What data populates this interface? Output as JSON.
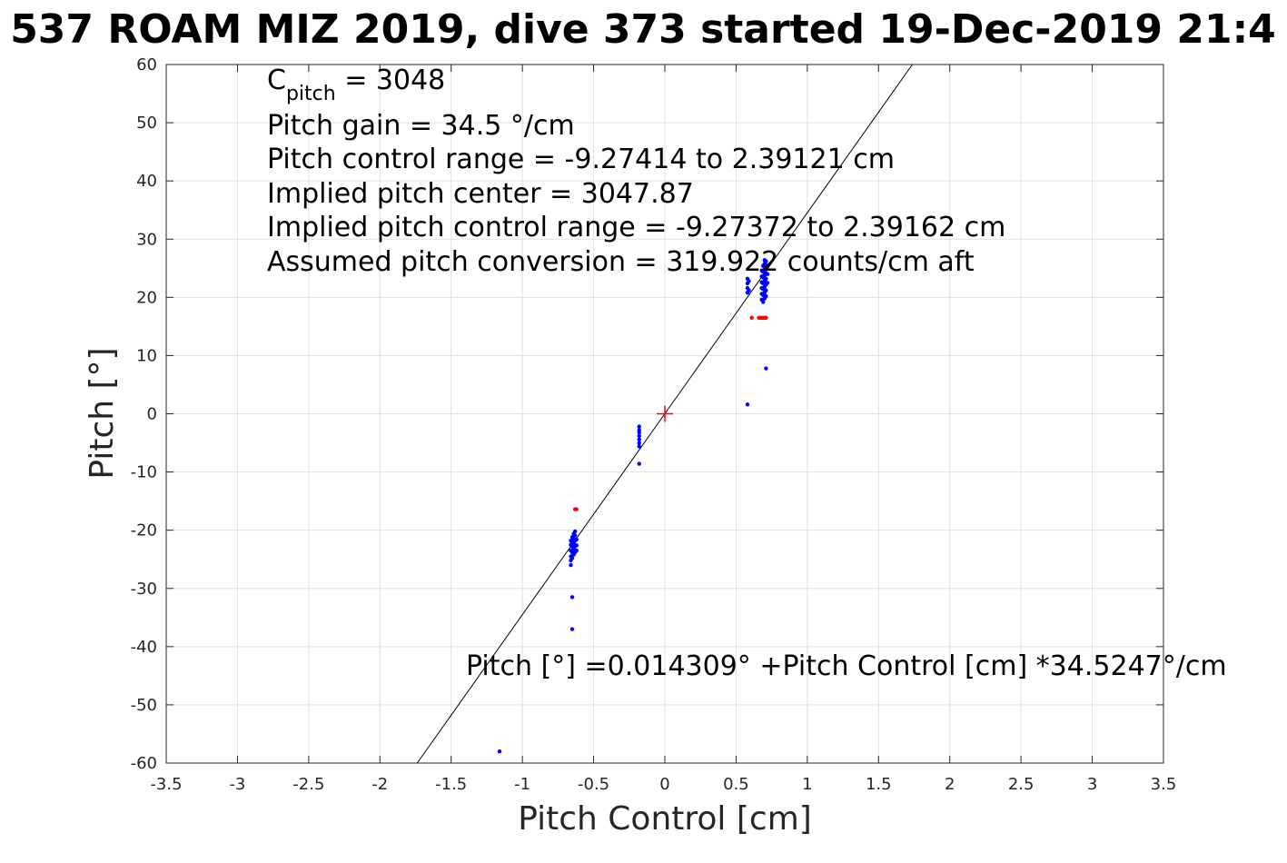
{
  "chart_data": {
    "type": "scatter",
    "title": "537 ROAM MIZ 2019, dive 373 started 19-Dec-2019 21:4",
    "xlabel": "Pitch Control [cm]",
    "ylabel": "Pitch [°]",
    "xlim": [
      -3.5,
      3.5
    ],
    "ylim": [
      -60,
      60
    ],
    "x_ticks": [
      -3.5,
      -3,
      -2.5,
      -2,
      -1.5,
      -1,
      -0.5,
      0,
      0.5,
      1,
      1.5,
      2,
      2.5,
      3,
      3.5
    ],
    "y_ticks": [
      -60,
      -50,
      -40,
      -30,
      -20,
      -10,
      0,
      10,
      20,
      30,
      40,
      50,
      60
    ],
    "grid": true,
    "colors": {
      "used": "#0000ff",
      "excluded": "#ff0000",
      "fit_line": "#000000",
      "center_marker": "#ff0000",
      "grid": "#e0e0e0",
      "axis": "#262626"
    },
    "annotations": {
      "c_pitch_base": "C",
      "c_pitch_sub": "pitch",
      "c_pitch_value": " = 3048",
      "lines": [
        "Pitch gain = 34.5 °/cm",
        "Pitch control range = -9.27414 to 2.39121 cm",
        "Implied pitch center = 3047.87",
        "Implied pitch control range = -9.27372 to 2.39162 cm",
        "Assumed pitch conversion = 319.922 counts/cm aft"
      ],
      "fit_equation": "Pitch [°] =0.014309° +Pitch Control [cm] *34.5247°/cm"
    },
    "fit_line": {
      "intercept": 0.014309,
      "slope": 34.5247
    },
    "center_marker": {
      "x": 0,
      "y": 0
    },
    "series": [
      {
        "role": "used",
        "points": [
          [
            -1.16,
            -58
          ],
          [
            -0.65,
            -37
          ],
          [
            -0.65,
            -31.5
          ],
          [
            -0.66,
            -26
          ],
          [
            -0.66,
            -25.2
          ],
          [
            -0.66,
            -24.5
          ],
          [
            -0.66,
            -23.5
          ],
          [
            -0.66,
            -22.5
          ],
          [
            -0.66,
            -21.8
          ],
          [
            -0.65,
            -24.8
          ],
          [
            -0.65,
            -23.8
          ],
          [
            -0.65,
            -22.8
          ],
          [
            -0.65,
            -21.9
          ],
          [
            -0.65,
            -21.2
          ],
          [
            -0.64,
            -24.2
          ],
          [
            -0.64,
            -23.2
          ],
          [
            -0.64,
            -22.2
          ],
          [
            -0.64,
            -21.4
          ],
          [
            -0.64,
            -20.6
          ],
          [
            -0.63,
            -23.8
          ],
          [
            -0.63,
            -22.8
          ],
          [
            -0.63,
            -21.8
          ],
          [
            -0.63,
            -20.9
          ],
          [
            -0.63,
            -20.2
          ],
          [
            -0.62,
            -23.5
          ],
          [
            -0.62,
            -22.6
          ],
          [
            -0.62,
            -21.6
          ],
          [
            -0.18,
            -8.6
          ],
          [
            -0.18,
            -5.6
          ],
          [
            -0.18,
            -5
          ],
          [
            -0.18,
            -4.4
          ],
          [
            -0.18,
            -3.8
          ],
          [
            -0.18,
            -3.2
          ],
          [
            -0.18,
            -2.8
          ],
          [
            -0.18,
            -2.2
          ],
          [
            0.58,
            1.6
          ],
          [
            0.71,
            7.8
          ],
          [
            0.58,
            20.8
          ],
          [
            0.58,
            21.6
          ],
          [
            0.58,
            22.4
          ],
          [
            0.58,
            23.2
          ],
          [
            0.59,
            21.2
          ],
          [
            0.59,
            22.8
          ],
          [
            0.68,
            19.6
          ],
          [
            0.68,
            20.6
          ],
          [
            0.68,
            21.6
          ],
          [
            0.68,
            22.6
          ],
          [
            0.68,
            23.6
          ],
          [
            0.68,
            24.6
          ],
          [
            0.69,
            19.2
          ],
          [
            0.69,
            20.4
          ],
          [
            0.69,
            21.4
          ],
          [
            0.69,
            22.4
          ],
          [
            0.69,
            23.4
          ],
          [
            0.69,
            24.4
          ],
          [
            0.69,
            25.4
          ],
          [
            0.7,
            19.8
          ],
          [
            0.7,
            20.8
          ],
          [
            0.7,
            21.8
          ],
          [
            0.7,
            22.8
          ],
          [
            0.7,
            23.8
          ],
          [
            0.7,
            24.8
          ],
          [
            0.7,
            25.8
          ],
          [
            0.7,
            26.4
          ],
          [
            0.71,
            20.2
          ],
          [
            0.71,
            21.2
          ],
          [
            0.71,
            22.2
          ],
          [
            0.71,
            23.2
          ],
          [
            0.71,
            24.2
          ],
          [
            0.71,
            25.2
          ],
          [
            0.71,
            26.2
          ],
          [
            0.72,
            22.5
          ],
          [
            0.72,
            24
          ],
          [
            0.72,
            25.5
          ]
        ]
      },
      {
        "role": "excluded",
        "points": [
          [
            -0.63,
            -16.4
          ],
          [
            -0.62,
            -16.4
          ],
          [
            0.61,
            16.5
          ],
          [
            0.66,
            16.5
          ],
          [
            0.67,
            16.5
          ],
          [
            0.68,
            16.5
          ],
          [
            0.69,
            16.5
          ],
          [
            0.7,
            16.5
          ],
          [
            0.71,
            16.5
          ]
        ]
      }
    ]
  }
}
